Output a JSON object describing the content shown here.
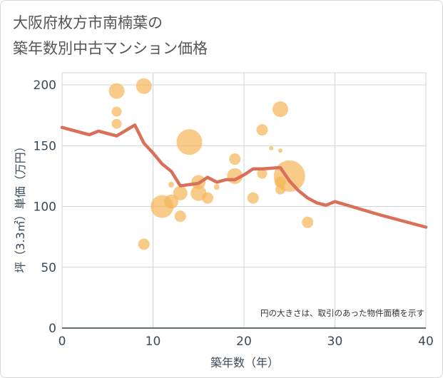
{
  "title_line1": "大阪府枚方市南楠葉の",
  "title_line2": "築年数別中古マンション価格",
  "chart_data": {
    "type": "scatter",
    "title": "大阪府枚方市南楠葉の築年数別中古マンション価格",
    "xlabel": "築年数（年）",
    "ylabel": "坪（3.3㎡）単価（万円）",
    "xlim": [
      0,
      40
    ],
    "ylim": [
      0,
      210
    ],
    "xticks": [
      0,
      10,
      20,
      30,
      40
    ],
    "yticks": [
      0,
      50,
      100,
      150,
      200
    ],
    "grid": true,
    "note": "円の大きさは、取引のあった物件面積を示す",
    "colors": {
      "bubble": "#f5b75a",
      "line": "#d9705a"
    },
    "scatter": [
      {
        "x": 6,
        "y": 195,
        "size": 11
      },
      {
        "x": 6,
        "y": 178,
        "size": 7
      },
      {
        "x": 6,
        "y": 168,
        "size": 7
      },
      {
        "x": 9,
        "y": 199,
        "size": 11
      },
      {
        "x": 9,
        "y": 69,
        "size": 8
      },
      {
        "x": 11,
        "y": 100,
        "size": 16
      },
      {
        "x": 12,
        "y": 104,
        "size": 10
      },
      {
        "x": 12,
        "y": 118,
        "size": 4
      },
      {
        "x": 13,
        "y": 111,
        "size": 10
      },
      {
        "x": 13,
        "y": 92,
        "size": 8
      },
      {
        "x": 14,
        "y": 153,
        "size": 18
      },
      {
        "x": 15,
        "y": 111,
        "size": 11
      },
      {
        "x": 15,
        "y": 120,
        "size": 10
      },
      {
        "x": 16,
        "y": 107,
        "size": 8
      },
      {
        "x": 17,
        "y": 116,
        "size": 4
      },
      {
        "x": 19,
        "y": 139,
        "size": 8
      },
      {
        "x": 19,
        "y": 125,
        "size": 11
      },
      {
        "x": 21,
        "y": 107,
        "size": 8
      },
      {
        "x": 22,
        "y": 163,
        "size": 8
      },
      {
        "x": 22,
        "y": 127,
        "size": 7
      },
      {
        "x": 23,
        "y": 148,
        "size": 3
      },
      {
        "x": 24,
        "y": 180,
        "size": 11
      },
      {
        "x": 24,
        "y": 146,
        "size": 3
      },
      {
        "x": 24,
        "y": 120,
        "size": 8
      },
      {
        "x": 24,
        "y": 114,
        "size": 7
      },
      {
        "x": 25,
        "y": 125,
        "size": 22
      },
      {
        "x": 27,
        "y": 87,
        "size": 8
      }
    ],
    "line": {
      "x": [
        0,
        3,
        4,
        6,
        8,
        9,
        10,
        11,
        12,
        13,
        15,
        16,
        17,
        18,
        19,
        20,
        21,
        22,
        24,
        25,
        26,
        27,
        28,
        29,
        30,
        35,
        40
      ],
      "y": [
        165,
        159,
        162,
        158,
        167,
        152,
        144,
        135,
        129,
        117,
        119,
        124,
        120,
        122,
        122,
        126,
        131,
        131,
        132,
        121,
        113,
        107,
        103,
        101,
        104,
        93,
        83
      ]
    }
  }
}
